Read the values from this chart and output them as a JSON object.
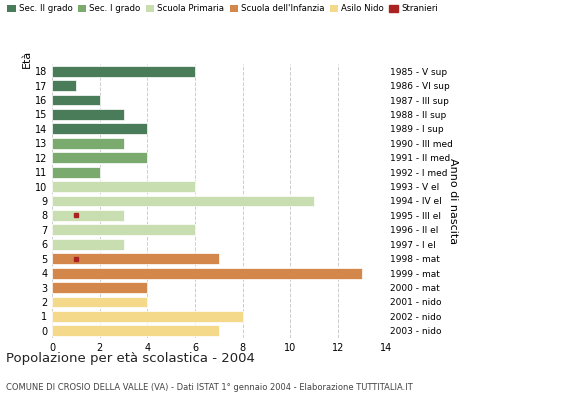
{
  "ages": [
    18,
    17,
    16,
    15,
    14,
    13,
    12,
    11,
    10,
    9,
    8,
    7,
    6,
    5,
    4,
    3,
    2,
    1,
    0
  ],
  "anno_nascita": [
    "1985 - V sup",
    "1986 - VI sup",
    "1987 - III sup",
    "1988 - II sup",
    "1989 - I sup",
    "1990 - III med",
    "1991 - II med",
    "1992 - I med",
    "1993 - V el",
    "1994 - IV el",
    "1995 - III el",
    "1996 - II el",
    "1997 - I el",
    "1998 - mat",
    "1999 - mat",
    "2000 - mat",
    "2001 - nido",
    "2002 - nido",
    "2003 - nido"
  ],
  "bar_values": [
    6,
    1,
    2,
    3,
    4,
    3,
    4,
    2,
    6,
    11,
    3,
    6,
    3,
    7,
    13,
    4,
    4,
    8,
    7
  ],
  "bar_colors": [
    "#4a7c59",
    "#4a7c59",
    "#4a7c59",
    "#4a7c59",
    "#4a7c59",
    "#7aaa6d",
    "#7aaa6d",
    "#7aaa6d",
    "#c8ddb0",
    "#c8ddb0",
    "#c8ddb0",
    "#c8ddb0",
    "#c8ddb0",
    "#d4874a",
    "#d4874a",
    "#d4874a",
    "#f5d98a",
    "#f5d98a",
    "#f5d98a"
  ],
  "stranieri": {
    "8": 1,
    "5": 1
  },
  "legend_labels": [
    "Sec. II grado",
    "Sec. I grado",
    "Scuola Primaria",
    "Scuola dell'Infanzia",
    "Asilo Nido",
    "Stranieri"
  ],
  "legend_colors": [
    "#4a7c59",
    "#7aaa6d",
    "#c8ddb0",
    "#d4874a",
    "#f5d98a",
    "#aa2222"
  ],
  "title": "Popolazione per età scolastica - 2004",
  "subtitle": "COMUNE DI CROSIO DELLA VALLE (VA) - Dati ISTAT 1° gennaio 2004 - Elaborazione TUTTITALIA.IT",
  "xlim": [
    0,
    14
  ],
  "xticks": [
    0,
    2,
    4,
    6,
    8,
    10,
    12,
    14
  ],
  "background_color": "#ffffff",
  "grid_color": "#cccccc",
  "stranieri_color": "#aa2222"
}
